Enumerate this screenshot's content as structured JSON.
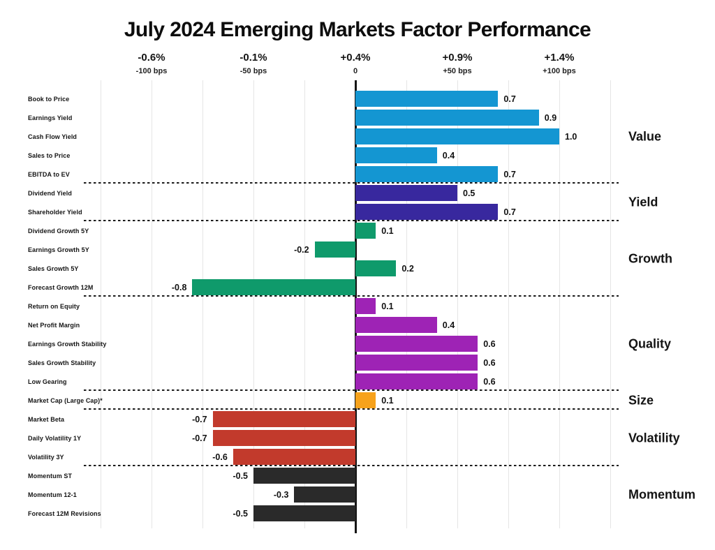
{
  "chart_data": {
    "type": "bar",
    "orientation": "horizontal",
    "title": "July 2024 Emerging Markets Factor Performance",
    "axis": {
      "grid": true,
      "grid_step": 0.25,
      "xlim": [
        -1.3,
        1.3
      ],
      "ticks": [
        {
          "value": -1.0,
          "pct_label": "-0.6%",
          "bps_label": "-100 bps"
        },
        {
          "value": -0.5,
          "pct_label": "-0.1%",
          "bps_label": "-50 bps"
        },
        {
          "value": 0.0,
          "pct_label": "+0.4%",
          "bps_label": "0"
        },
        {
          "value": 0.5,
          "pct_label": "+0.9%",
          "bps_label": "+50 bps"
        },
        {
          "value": 1.0,
          "pct_label": "+1.4%",
          "bps_label": "+100 bps"
        }
      ]
    },
    "legend_position": "right",
    "groups": [
      {
        "name": "Value",
        "color": "#1496d2",
        "items": [
          {
            "label": "Book to Price",
            "value": 0.7,
            "display": "0.7"
          },
          {
            "label": "Earnings Yield",
            "value": 0.9,
            "display": "0.9"
          },
          {
            "label": "Cash Flow Yield",
            "value": 1.0,
            "display": "1.0"
          },
          {
            "label": "Sales to Price",
            "value": 0.4,
            "display": "0.4"
          },
          {
            "label": "EBITDA to EV",
            "value": 0.7,
            "display": "0.7"
          }
        ]
      },
      {
        "name": "Yield",
        "color": "#38289e",
        "items": [
          {
            "label": "Dividend Yield",
            "value": 0.5,
            "display": "0.5"
          },
          {
            "label": "Shareholder Yield",
            "value": 0.7,
            "display": "0.7"
          }
        ]
      },
      {
        "name": "Growth",
        "color": "#0f9a6b",
        "items": [
          {
            "label": "Dividend Growth 5Y",
            "value": 0.1,
            "display": "0.1"
          },
          {
            "label": "Earnings Growth 5Y",
            "value": -0.2,
            "display": "-0.2"
          },
          {
            "label": "Sales Growth 5Y",
            "value": 0.2,
            "display": "0.2"
          },
          {
            "label": "Forecast Growth 12M",
            "value": -0.8,
            "display": "-0.8"
          }
        ]
      },
      {
        "name": "Quality",
        "color": "#9e23b5",
        "items": [
          {
            "label": "Return on Equity",
            "value": 0.1,
            "display": "0.1"
          },
          {
            "label": "Net Profit Margin",
            "value": 0.4,
            "display": "0.4"
          },
          {
            "label": "Earnings Growth Stability",
            "value": 0.6,
            "display": "0.6"
          },
          {
            "label": "Sales Growth Stability",
            "value": 0.6,
            "display": "0.6"
          },
          {
            "label": "Low Gearing",
            "value": 0.6,
            "display": "0.6"
          }
        ]
      },
      {
        "name": "Size",
        "color": "#f7a21b",
        "items": [
          {
            "label": "Market Cap (Large Cap)*",
            "value": 0.1,
            "display": "0.1"
          }
        ]
      },
      {
        "name": "Volatility",
        "color": "#c23a2c",
        "items": [
          {
            "label": "Market Beta",
            "value": -0.7,
            "display": "-0.7"
          },
          {
            "label": "Daily Volatility 1Y",
            "value": -0.7,
            "display": "-0.7"
          },
          {
            "label": "Volatility 3Y",
            "value": -0.6,
            "display": "-0.6"
          }
        ]
      },
      {
        "name": "Momentum",
        "color": "#2a2a2a",
        "items": [
          {
            "label": "Momentum ST",
            "value": -0.5,
            "display": "-0.5"
          },
          {
            "label": "Momentum 12-1",
            "value": -0.3,
            "display": "-0.3"
          },
          {
            "label": "Forecast 12M Revisions",
            "value": -0.5,
            "display": "-0.5"
          }
        ]
      }
    ]
  }
}
